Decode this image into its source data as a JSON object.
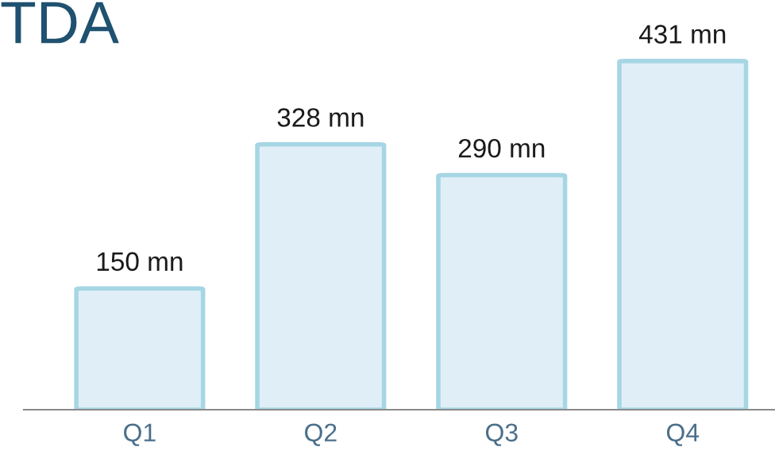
{
  "chart_data": {
    "type": "bar",
    "title": "TDA",
    "categories": [
      "Q1",
      "Q2",
      "Q3",
      "Q4"
    ],
    "values": [
      150,
      328,
      290,
      431
    ],
    "value_labels": [
      "150 mn",
      "328 mn",
      "290 mn",
      "431 mn"
    ],
    "color": "#e0eff7",
    "grid": false,
    "legend": false
  }
}
